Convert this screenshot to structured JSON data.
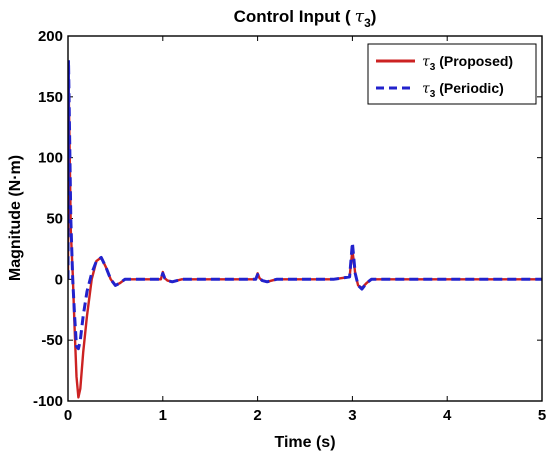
{
  "chart_data": {
    "type": "line",
    "title_prefix": "Control Input (",
    "title_symbol": "τ",
    "title_sub": "3",
    "title_suffix": ")",
    "xlabel": "Time (s)",
    "ylabel": "Magnitude (N·m)",
    "xlim": [
      0,
      5
    ],
    "ylim": [
      -100,
      200
    ],
    "xticks": [
      "0",
      "1",
      "2",
      "3",
      "4",
      "5"
    ],
    "yticks": [
      "-100",
      "-50",
      "0",
      "50",
      "100",
      "150",
      "200"
    ],
    "grid": false,
    "legend_position": "top-right",
    "series": [
      {
        "name_symbol": "τ",
        "name_sub": "3",
        "name_text": " (Proposed)",
        "color": "#cc2222",
        "style": "solid",
        "x": [
          0,
          0.005,
          0.015,
          0.03,
          0.05,
          0.07,
          0.09,
          0.11,
          0.13,
          0.16,
          0.2,
          0.25,
          0.3,
          0.35,
          0.4,
          0.45,
          0.5,
          0.55,
          0.6,
          0.7,
          0.8,
          0.9,
          0.98,
          1.0,
          1.02,
          1.05,
          1.1,
          1.15,
          1.2,
          1.3,
          1.5,
          1.8,
          1.98,
          2.0,
          2.02,
          2.05,
          2.1,
          2.15,
          2.2,
          2.3,
          2.5,
          2.8,
          2.97,
          3.0,
          3.03,
          3.06,
          3.1,
          3.15,
          3.2,
          3.3,
          3.5,
          4.0,
          4.5,
          5.0
        ],
        "y": [
          0,
          165,
          120,
          40,
          5,
          -40,
          -80,
          -97,
          -90,
          -60,
          -30,
          0,
          15,
          18,
          10,
          0,
          -5,
          -3,
          0,
          0,
          0,
          0,
          0,
          6,
          1,
          -1,
          -2,
          -1,
          0,
          0,
          0,
          0,
          0,
          5,
          1,
          -1,
          -2,
          -1,
          0,
          0,
          0,
          0,
          2,
          24,
          5,
          -5,
          -7,
          -3,
          0,
          0,
          0,
          0,
          0,
          0
        ]
      },
      {
        "name_symbol": "τ",
        "name_sub": "3",
        "name_text": " (Periodic)",
        "color": "#2222cc",
        "style": "dashed",
        "x": [
          0,
          0.005,
          0.015,
          0.03,
          0.05,
          0.07,
          0.09,
          0.11,
          0.13,
          0.16,
          0.2,
          0.25,
          0.3,
          0.35,
          0.4,
          0.45,
          0.5,
          0.55,
          0.6,
          0.7,
          0.8,
          0.9,
          0.98,
          1.0,
          1.02,
          1.05,
          1.1,
          1.15,
          1.2,
          1.3,
          1.5,
          1.8,
          1.98,
          2.0,
          2.02,
          2.05,
          2.1,
          2.15,
          2.2,
          2.3,
          2.5,
          2.8,
          2.97,
          3.0,
          3.03,
          3.06,
          3.1,
          3.15,
          3.2,
          3.3,
          3.5,
          4.0,
          4.5,
          5.0
        ],
        "y": [
          0,
          180,
          130,
          50,
          0,
          -30,
          -55,
          -57,
          -50,
          -30,
          -10,
          5,
          15,
          18,
          10,
          0,
          -5,
          -3,
          0,
          0,
          0,
          0,
          0,
          5,
          1,
          -1,
          -2,
          -1,
          0,
          0,
          0,
          0,
          0,
          4,
          1,
          -1,
          -2,
          -1,
          0,
          0,
          0,
          0,
          2,
          30,
          5,
          -5,
          -8,
          -3,
          0,
          0,
          0,
          0,
          0,
          0
        ]
      }
    ]
  }
}
